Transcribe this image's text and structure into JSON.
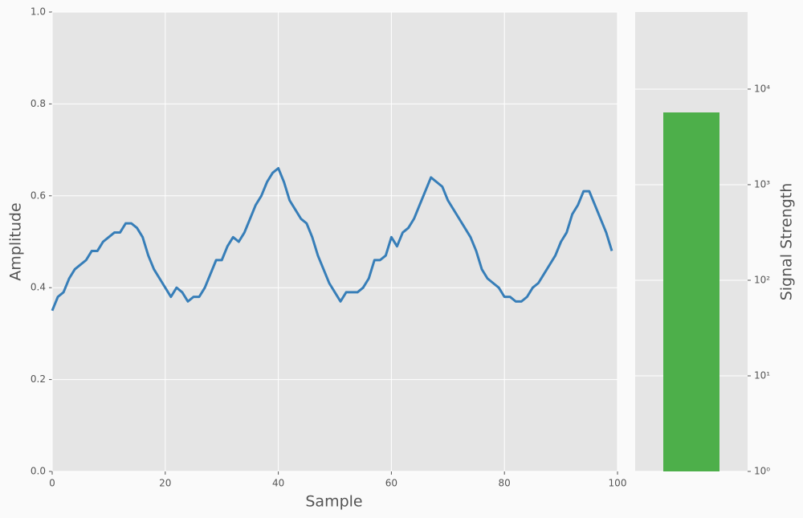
{
  "chart_data": [
    {
      "type": "line",
      "xlabel": "Sample",
      "ylabel": "Amplitude",
      "x": [
        0,
        1,
        2,
        3,
        4,
        5,
        6,
        7,
        8,
        9,
        10,
        11,
        12,
        13,
        14,
        15,
        16,
        17,
        18,
        19,
        20,
        21,
        22,
        23,
        24,
        25,
        26,
        27,
        28,
        29,
        30,
        31,
        32,
        33,
        34,
        35,
        36,
        37,
        38,
        39,
        40,
        41,
        42,
        43,
        44,
        45,
        46,
        47,
        48,
        49,
        50,
        51,
        52,
        53,
        54,
        55,
        56,
        57,
        58,
        59,
        60,
        61,
        62,
        63,
        64,
        65,
        66,
        67,
        68,
        69,
        70,
        71,
        72,
        73,
        74,
        75,
        76,
        77,
        78,
        79,
        80,
        81,
        82,
        83,
        84,
        85,
        86,
        87,
        88,
        89,
        90,
        91,
        92,
        93,
        94,
        95,
        96,
        97,
        98,
        99
      ],
      "values": [
        0.35,
        0.38,
        0.39,
        0.42,
        0.44,
        0.45,
        0.46,
        0.48,
        0.48,
        0.5,
        0.51,
        0.52,
        0.52,
        0.54,
        0.54,
        0.53,
        0.51,
        0.47,
        0.44,
        0.42,
        0.4,
        0.38,
        0.4,
        0.39,
        0.37,
        0.38,
        0.38,
        0.4,
        0.43,
        0.46,
        0.46,
        0.49,
        0.51,
        0.5,
        0.52,
        0.55,
        0.58,
        0.6,
        0.63,
        0.65,
        0.66,
        0.63,
        0.59,
        0.57,
        0.55,
        0.54,
        0.51,
        0.47,
        0.44,
        0.41,
        0.39,
        0.37,
        0.39,
        0.39,
        0.39,
        0.4,
        0.42,
        0.46,
        0.46,
        0.47,
        0.51,
        0.49,
        0.52,
        0.53,
        0.55,
        0.58,
        0.61,
        0.64,
        0.63,
        0.62,
        0.59,
        0.57,
        0.55,
        0.53,
        0.51,
        0.48,
        0.44,
        0.42,
        0.41,
        0.4,
        0.38,
        0.38,
        0.37,
        0.37,
        0.38,
        0.4,
        0.41,
        0.43,
        0.45,
        0.47,
        0.5,
        0.52,
        0.56,
        0.58,
        0.61,
        0.61,
        0.58,
        0.55,
        0.52,
        0.48
      ],
      "color": "#377eb8",
      "xlim": [
        0,
        100
      ],
      "xticks": [
        0,
        20,
        40,
        60,
        80,
        100
      ],
      "ylim": [
        0,
        1
      ],
      "yticks": [
        {
          "value": 0,
          "label": "0.0"
        },
        0.2,
        0.4,
        0.6,
        0.8,
        {
          "value": 1,
          "label": "1.0"
        }
      ],
      "grid": true
    },
    {
      "type": "bar",
      "ylabel": "Signal Strength",
      "log": true,
      "categories": [
        null
      ],
      "values": [
        5700
      ],
      "color": "#4daf4a",
      "ylim": [
        1,
        64000
      ],
      "yticks": [
        {
          "value": 1,
          "label": "10⁰"
        },
        {
          "value": 10,
          "label": "10¹"
        },
        {
          "value": 100,
          "label": "10²"
        },
        {
          "value": 1000,
          "label": "10³"
        },
        {
          "value": 10000,
          "label": "10⁴"
        }
      ],
      "grid": true
    }
  ]
}
